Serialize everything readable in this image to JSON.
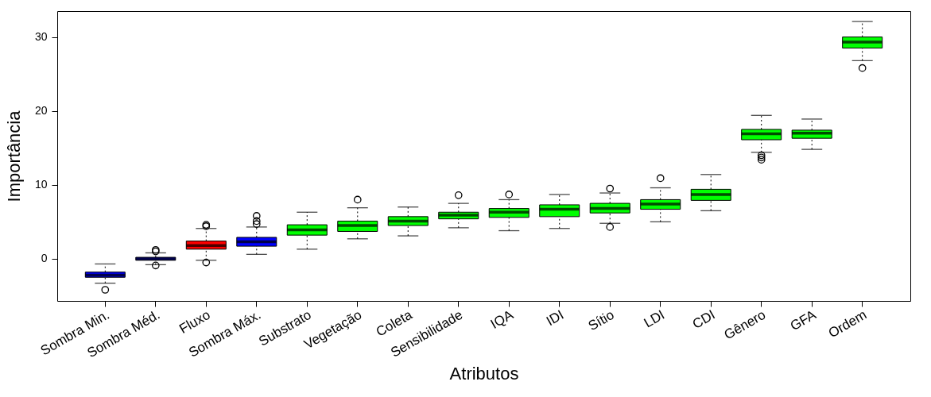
{
  "chart_data": {
    "type": "box",
    "xlabel": "Atributos",
    "ylabel": "Importância",
    "categories": [
      "Sombra Min.",
      "Sombra Méd.",
      "Fluxo",
      "Sombra Máx.",
      "Substrato",
      "Vegetação",
      "Coleta",
      "Sensibilidade",
      "IQA",
      "IDI",
      "Sítio",
      "LDI",
      "CDI",
      "Gênero",
      "GFA",
      "Ordem"
    ],
    "colors": [
      "#0000ff",
      "#0000ff",
      "#ff0000",
      "#0000ff",
      "#00ff00",
      "#00ff00",
      "#00ff00",
      "#00ff00",
      "#00ff00",
      "#00ff00",
      "#00ff00",
      "#00ff00",
      "#00ff00",
      "#00ff00",
      "#00ff00",
      "#00ff00"
    ],
    "boxes": [
      {
        "low": -3.3,
        "q1": -2.5,
        "median": -2.2,
        "q3": -1.8,
        "high": -0.7,
        "outliers": [
          -4.2
        ]
      },
      {
        "low": -0.8,
        "q1": -0.2,
        "median": 0,
        "q3": 0.2,
        "high": 0.8,
        "outliers": [
          1.2,
          1.0,
          -0.9
        ]
      },
      {
        "low": -0.2,
        "q1": 1.3,
        "median": 1.8,
        "q3": 2.4,
        "high": 4.1,
        "outliers": [
          4.6,
          4.4,
          -0.5
        ]
      },
      {
        "low": 0.6,
        "q1": 1.7,
        "median": 2.3,
        "q3": 2.9,
        "high": 4.3,
        "outliers": [
          5.8,
          5.1,
          4.7
        ]
      },
      {
        "low": 1.3,
        "q1": 3.2,
        "median": 3.9,
        "q3": 4.6,
        "high": 6.3
      },
      {
        "low": 2.7,
        "q1": 3.7,
        "median": 4.5,
        "q3": 5.1,
        "high": 6.9,
        "outliers": [
          8.0
        ]
      },
      {
        "low": 3.1,
        "q1": 4.5,
        "median": 5.1,
        "q3": 5.7,
        "high": 7.0
      },
      {
        "low": 4.2,
        "q1": 5.4,
        "median": 5.9,
        "q3": 6.3,
        "high": 7.5,
        "outliers": [
          8.6
        ]
      },
      {
        "low": 3.8,
        "q1": 5.6,
        "median": 6.3,
        "q3": 6.8,
        "high": 8.0,
        "outliers": [
          8.7
        ]
      },
      {
        "low": 4.1,
        "q1": 5.7,
        "median": 6.7,
        "q3": 7.3,
        "high": 8.7
      },
      {
        "low": 4.8,
        "q1": 6.2,
        "median": 6.8,
        "q3": 7.5,
        "high": 8.9,
        "outliers": [
          9.5,
          4.3
        ]
      },
      {
        "low": 5.0,
        "q1": 6.7,
        "median": 7.4,
        "q3": 8.0,
        "high": 9.6,
        "outliers": [
          10.9
        ]
      },
      {
        "low": 6.5,
        "q1": 7.9,
        "median": 8.7,
        "q3": 9.4,
        "high": 11.4
      },
      {
        "low": 14.4,
        "q1": 16.1,
        "median": 16.9,
        "q3": 17.5,
        "high": 19.4,
        "outliers": [
          14.0,
          13.7,
          13.4
        ]
      },
      {
        "low": 14.8,
        "q1": 16.3,
        "median": 17.0,
        "q3": 17.4,
        "high": 18.9
      },
      {
        "low": 26.8,
        "q1": 28.5,
        "median": 29.3,
        "q3": 30.0,
        "high": 32.1,
        "outliers": [
          25.8
        ]
      }
    ],
    "ylim": [
      -5.7,
      33.5
    ],
    "yticks": [
      0,
      10,
      20,
      30
    ],
    "grid": false,
    "marker": "circle"
  }
}
